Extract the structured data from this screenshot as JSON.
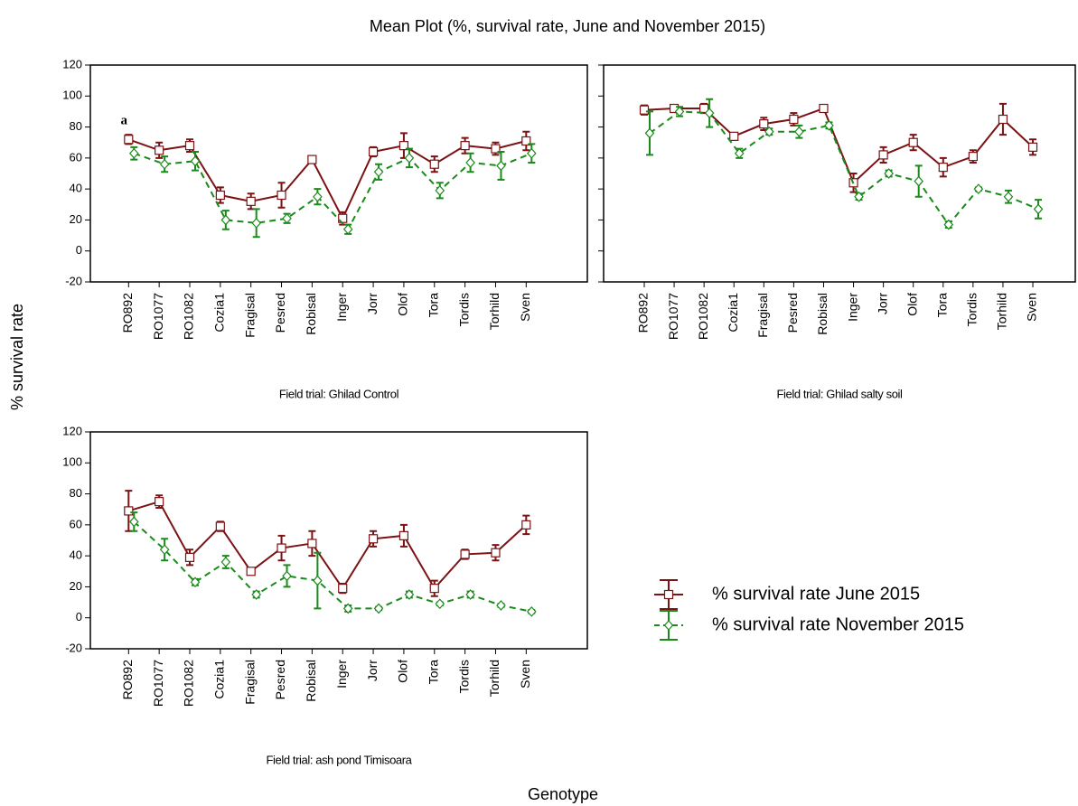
{
  "title": "Mean Plot (%, survival rate, June and November 2015)",
  "y_label": "% survival rate",
  "x_label": "Genotype",
  "legend": {
    "position": "lower right",
    "entries": [
      "% survival rate June 2015",
      "% survival rate November 2015"
    ]
  },
  "chart_data": [
    {
      "type": "line",
      "subtitle": "Field trial: Ghilad Control",
      "annotation": "a",
      "categories": [
        "RO892",
        "RO1077",
        "RO1082",
        "Cozia1",
        "Fragisal",
        "Pesred",
        "Robisal",
        "Inger",
        "Jorr",
        "Olof",
        "Tora",
        "Tordis",
        "Torhild",
        "Sven"
      ],
      "ylim": [
        -20,
        120
      ],
      "yticks": [
        -20,
        0,
        20,
        40,
        60,
        80,
        100,
        120
      ],
      "show_y_tick_labels": true,
      "series": [
        {
          "color": "#7b1214",
          "marker": "square",
          "dashed": false,
          "values": [
            72,
            65,
            68,
            36,
            32,
            36,
            59,
            21,
            64,
            68,
            56,
            68,
            66,
            71
          ],
          "errors": [
            3,
            5,
            4,
            5,
            5,
            8,
            1,
            4,
            3,
            8,
            5,
            5,
            4,
            6
          ]
        },
        {
          "color": "#1a8a1a",
          "marker": "diamond",
          "dashed": true,
          "values": [
            63,
            56,
            58,
            20,
            18,
            21,
            35,
            14,
            51,
            60,
            39,
            57,
            55,
            63
          ],
          "errors": [
            4,
            5,
            6,
            6,
            9,
            3,
            5,
            3,
            5,
            6,
            5,
            6,
            9,
            6
          ]
        }
      ]
    },
    {
      "type": "line",
      "subtitle": "Field trial: Ghilad salty soil",
      "categories": [
        "RO892",
        "RO1077",
        "RO1082",
        "Cozia1",
        "Fragisal",
        "Pesred",
        "Robisal",
        "Inger",
        "Jorr",
        "Olof",
        "Tora",
        "Tordis",
        "Torhild",
        "Sven"
      ],
      "ylim": [
        -20,
        120
      ],
      "yticks": [
        -20,
        0,
        20,
        40,
        60,
        80,
        100,
        120
      ],
      "show_y_tick_labels": false,
      "series": [
        {
          "color": "#7b1214",
          "marker": "square",
          "dashed": false,
          "values": [
            91,
            92,
            92,
            74,
            82,
            85,
            92,
            44,
            62,
            70,
            54,
            61,
            85,
            67
          ],
          "errors": [
            3,
            2,
            3,
            2,
            4,
            4,
            2,
            6,
            5,
            5,
            6,
            4,
            10,
            5
          ]
        },
        {
          "color": "#1a8a1a",
          "marker": "diamond",
          "dashed": true,
          "values": [
            76,
            90,
            89,
            63,
            77,
            77,
            81,
            35,
            50,
            45,
            17,
            40,
            35,
            27
          ],
          "errors": [
            14,
            3,
            9,
            3,
            2,
            4,
            2,
            2,
            2,
            10,
            2,
            1,
            4,
            6
          ]
        }
      ]
    },
    {
      "type": "line",
      "subtitle": "Field trial: ash pond Timisoara",
      "categories": [
        "RO892",
        "RO1077",
        "RO1082",
        "Cozia1",
        "Fragisal",
        "Pesred",
        "Robisal",
        "Inger",
        "Jorr",
        "Olof",
        "Tora",
        "Tordis",
        "Torhild",
        "Sven"
      ],
      "ylim": [
        -20,
        120
      ],
      "yticks": [
        -20,
        0,
        20,
        40,
        60,
        80,
        100,
        120
      ],
      "show_y_tick_labels": true,
      "series": [
        {
          "color": "#7b1214",
          "marker": "square",
          "dashed": false,
          "values": [
            69,
            75,
            39,
            59,
            30,
            45,
            48,
            19,
            51,
            53,
            19,
            41,
            42,
            60
          ],
          "errors": [
            13,
            4,
            5,
            3,
            2,
            8,
            8,
            3,
            5,
            7,
            5,
            3,
            5,
            6
          ]
        },
        {
          "color": "#1a8a1a",
          "marker": "diamond",
          "dashed": true,
          "values": [
            62,
            44,
            23,
            36,
            15,
            27,
            24,
            6,
            6,
            15,
            9,
            15,
            8,
            4
          ],
          "errors": [
            6,
            7,
            2,
            4,
            2,
            7,
            18,
            2,
            1,
            2,
            1,
            2,
            1,
            1
          ]
        }
      ]
    }
  ]
}
